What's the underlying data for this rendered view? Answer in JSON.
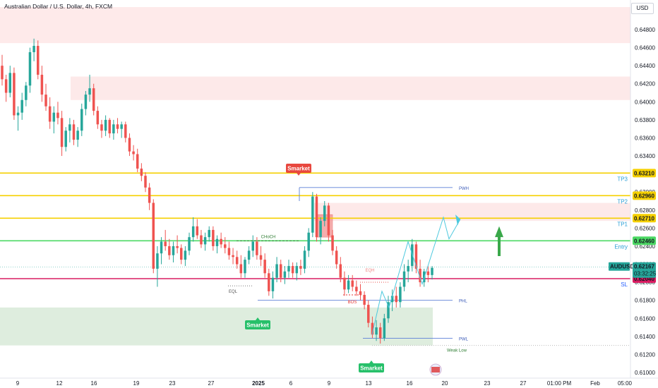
{
  "header": {
    "title": "Australian Dollar / U.S. Dollar, 4h, FXCM",
    "currency_button": "USD"
  },
  "chart_data": {
    "type": "candlestick",
    "symbol": "AUDUSD",
    "timeframe": "4h",
    "y_axis": {
      "ylim": [
        0.61,
        0.67
      ],
      "ticks": [
        "0.64800",
        "0.64600",
        "0.64400",
        "0.64200",
        "0.64000",
        "0.63800",
        "0.63600",
        "0.63400",
        "0.63200",
        "0.63000",
        "0.62800",
        "0.62600",
        "0.62400",
        "0.62200",
        "0.62000",
        "0.61800",
        "0.61600",
        "0.61400",
        "0.61200",
        "0.61000"
      ]
    },
    "x_axis": {
      "ticks": [
        "9",
        "12",
        "16",
        "19",
        "23",
        "27",
        "2025",
        "6",
        "9",
        "13",
        "16",
        "20",
        "23",
        "27",
        "01:00 PM",
        "Feb",
        "05:00"
      ]
    },
    "levels": [
      {
        "name": "TP3",
        "value": 0.6321,
        "label": "0.63210",
        "color": "#f5d000"
      },
      {
        "name": "TP2",
        "value": 0.6296,
        "label": "0.62960",
        "color": "#f5d000"
      },
      {
        "name": "TP1",
        "value": 0.6271,
        "label": "0.62710",
        "color": "#f5d000"
      },
      {
        "name": "Entry",
        "value": 0.6246,
        "label": "0.62460",
        "color": "#4cd964"
      },
      {
        "name": "SL",
        "value": 0.6204,
        "label": "0.62040",
        "color": "#d81b60"
      }
    ],
    "current_price": {
      "value": 0.62167,
      "label": "0.62167",
      "countdown": "03:32:25",
      "symbol": "AUDUSD"
    },
    "zones": [
      {
        "kind": "supply",
        "from": 0.6465,
        "to": 0.651
      },
      {
        "kind": "supply",
        "from": 0.6402,
        "to": 0.6428
      },
      {
        "kind": "supply",
        "from": 0.6268,
        "to": 0.6288
      },
      {
        "kind": "demand",
        "from": 0.613,
        "to": 0.6172
      }
    ],
    "annotations": [
      "Smarket",
      "Smarket",
      "Smarket",
      "CHoCH",
      "BOS",
      "PWH",
      "PWL",
      "PHL",
      "EQL",
      "EQH",
      "Weak Low"
    ],
    "ohlc": [
      [
        0.644,
        0.6452,
        0.6418,
        0.6425
      ],
      [
        0.6425,
        0.643,
        0.64,
        0.641
      ],
      [
        0.641,
        0.644,
        0.6405,
        0.6432
      ],
      [
        0.6432,
        0.6438,
        0.638,
        0.6385
      ],
      [
        0.6385,
        0.6395,
        0.6368,
        0.6388
      ],
      [
        0.6388,
        0.641,
        0.638,
        0.6402
      ],
      [
        0.6402,
        0.6422,
        0.6395,
        0.6418
      ],
      [
        0.6418,
        0.646,
        0.641,
        0.6455
      ],
      [
        0.6455,
        0.647,
        0.6445,
        0.6462
      ],
      [
        0.6462,
        0.6468,
        0.6425,
        0.643
      ],
      [
        0.643,
        0.644,
        0.64,
        0.6408
      ],
      [
        0.6408,
        0.642,
        0.639,
        0.6395
      ],
      [
        0.6395,
        0.6405,
        0.637,
        0.6378
      ],
      [
        0.6378,
        0.6395,
        0.6365,
        0.6388
      ],
      [
        0.6388,
        0.64,
        0.6375,
        0.6382
      ],
      [
        0.6382,
        0.639,
        0.634,
        0.635
      ],
      [
        0.635,
        0.6372,
        0.6345,
        0.6368
      ],
      [
        0.6368,
        0.6382,
        0.6355,
        0.6375
      ],
      [
        0.6375,
        0.638,
        0.6352,
        0.6358
      ],
      [
        0.6358,
        0.6372,
        0.635,
        0.6368
      ],
      [
        0.6368,
        0.6398,
        0.6362,
        0.6392
      ],
      [
        0.6392,
        0.6412,
        0.6385,
        0.6408
      ],
      [
        0.6408,
        0.643,
        0.64,
        0.6415
      ],
      [
        0.6415,
        0.642,
        0.6385,
        0.639
      ],
      [
        0.639,
        0.6395,
        0.637,
        0.6375
      ],
      [
        0.6375,
        0.638,
        0.636,
        0.6368
      ],
      [
        0.6368,
        0.6385,
        0.6362,
        0.638
      ],
      [
        0.638,
        0.6382,
        0.636,
        0.6365
      ],
      [
        0.6365,
        0.638,
        0.6358,
        0.6375
      ],
      [
        0.6375,
        0.6382,
        0.6365,
        0.637
      ],
      [
        0.637,
        0.6378,
        0.636,
        0.6375
      ],
      [
        0.6375,
        0.6378,
        0.6355,
        0.636
      ],
      [
        0.636,
        0.6365,
        0.634,
        0.6345
      ],
      [
        0.6345,
        0.6352,
        0.6335,
        0.6342
      ],
      [
        0.6342,
        0.6348,
        0.6322,
        0.6326
      ],
      [
        0.6326,
        0.6332,
        0.6312,
        0.6318
      ],
      [
        0.6318,
        0.6322,
        0.63,
        0.6305
      ],
      [
        0.6305,
        0.631,
        0.628,
        0.6288
      ],
      [
        0.6288,
        0.6292,
        0.621,
        0.6215
      ],
      [
        0.6215,
        0.624,
        0.6195,
        0.6232
      ],
      [
        0.6232,
        0.625,
        0.622,
        0.6245
      ],
      [
        0.6245,
        0.6258,
        0.6235,
        0.624
      ],
      [
        0.624,
        0.6248,
        0.6225,
        0.623
      ],
      [
        0.623,
        0.6245,
        0.6222,
        0.624
      ],
      [
        0.624,
        0.6252,
        0.6232,
        0.6238
      ],
      [
        0.6238,
        0.6242,
        0.622,
        0.6225
      ],
      [
        0.6225,
        0.624,
        0.6218,
        0.6235
      ],
      [
        0.6235,
        0.6255,
        0.623,
        0.625
      ],
      [
        0.625,
        0.6272,
        0.6245,
        0.6262
      ],
      [
        0.6262,
        0.627,
        0.6248,
        0.6252
      ],
      [
        0.6252,
        0.6258,
        0.6238,
        0.6242
      ],
      [
        0.6242,
        0.6255,
        0.6235,
        0.625
      ],
      [
        0.625,
        0.6262,
        0.6245,
        0.6258
      ],
      [
        0.6258,
        0.6262,
        0.6235,
        0.624
      ],
      [
        0.624,
        0.6252,
        0.6232,
        0.6248
      ],
      [
        0.6248,
        0.6255,
        0.6238,
        0.6242
      ],
      [
        0.6242,
        0.625,
        0.6232,
        0.6238
      ],
      [
        0.6238,
        0.6245,
        0.6225,
        0.623
      ],
      [
        0.623,
        0.6238,
        0.622,
        0.6228
      ],
      [
        0.6228,
        0.6235,
        0.6215,
        0.622
      ],
      [
        0.622,
        0.623,
        0.6205,
        0.621
      ],
      [
        0.621,
        0.6228,
        0.6205,
        0.6225
      ],
      [
        0.6225,
        0.624,
        0.622,
        0.6235
      ],
      [
        0.6235,
        0.6252,
        0.6228,
        0.6245
      ],
      [
        0.6245,
        0.625,
        0.6225,
        0.623
      ],
      [
        0.623,
        0.624,
        0.6218,
        0.6225
      ],
      [
        0.6225,
        0.6232,
        0.6205,
        0.621
      ],
      [
        0.621,
        0.6215,
        0.6185,
        0.619
      ],
      [
        0.619,
        0.6212,
        0.6182,
        0.6205
      ],
      [
        0.6205,
        0.6228,
        0.62,
        0.622
      ],
      [
        0.622,
        0.6225,
        0.62,
        0.6205
      ],
      [
        0.6205,
        0.6218,
        0.6198,
        0.6212
      ],
      [
        0.6212,
        0.6225,
        0.6205,
        0.6218
      ],
      [
        0.6218,
        0.6222,
        0.6205,
        0.621
      ],
      [
        0.621,
        0.6222,
        0.6202,
        0.6218
      ],
      [
        0.6218,
        0.6225,
        0.6208,
        0.6215
      ],
      [
        0.6215,
        0.624,
        0.621,
        0.6235
      ],
      [
        0.6235,
        0.626,
        0.6228,
        0.6255
      ],
      [
        0.6255,
        0.63,
        0.625,
        0.6295
      ],
      [
        0.6295,
        0.6298,
        0.6245,
        0.625
      ],
      [
        0.625,
        0.6272,
        0.6242,
        0.6268
      ],
      [
        0.6268,
        0.629,
        0.6262,
        0.6285
      ],
      [
        0.6285,
        0.6288,
        0.6245,
        0.6252
      ],
      [
        0.6252,
        0.6258,
        0.623,
        0.6235
      ],
      [
        0.6235,
        0.624,
        0.6215,
        0.622
      ],
      [
        0.622,
        0.6228,
        0.62,
        0.6205
      ],
      [
        0.6205,
        0.6212,
        0.6185,
        0.6192
      ],
      [
        0.6192,
        0.6208,
        0.6188,
        0.6202
      ],
      [
        0.6202,
        0.6208,
        0.619,
        0.6195
      ],
      [
        0.6195,
        0.6202,
        0.6185,
        0.619
      ],
      [
        0.619,
        0.6198,
        0.618,
        0.6186
      ],
      [
        0.6186,
        0.619,
        0.617,
        0.6175
      ],
      [
        0.6175,
        0.618,
        0.615,
        0.6155
      ],
      [
        0.6155,
        0.6162,
        0.6138,
        0.6142
      ],
      [
        0.6142,
        0.6158,
        0.6135,
        0.615
      ],
      [
        0.615,
        0.6155,
        0.6132,
        0.6138
      ],
      [
        0.6138,
        0.6165,
        0.6135,
        0.616
      ],
      [
        0.616,
        0.6185,
        0.6155,
        0.6178
      ],
      [
        0.6178,
        0.6192,
        0.6168,
        0.6185
      ],
      [
        0.6185,
        0.6195,
        0.6172,
        0.6178
      ],
      [
        0.6178,
        0.62,
        0.6172,
        0.6195
      ],
      [
        0.6195,
        0.622,
        0.619,
        0.6212
      ],
      [
        0.6212,
        0.6225,
        0.62,
        0.6218
      ],
      [
        0.6218,
        0.6248,
        0.6212,
        0.6242
      ],
      [
        0.6242,
        0.6245,
        0.621,
        0.6215
      ],
      [
        0.6215,
        0.6225,
        0.6195,
        0.62
      ],
      [
        0.62,
        0.6215,
        0.6195,
        0.6212
      ],
      [
        0.6212,
        0.6218,
        0.62,
        0.6208
      ],
      [
        0.6208,
        0.6218,
        0.6203,
        0.6216
      ]
    ]
  },
  "tags": {
    "smarket_top": "Smarket",
    "smarket_left": "Smarket",
    "smarket_bottom": "Smarket"
  },
  "labels": {
    "choch": "CHoCH",
    "bos": "BOS",
    "pwh": "PWH",
    "pwl": "PWL",
    "phl": "PHL",
    "eql": "EQL",
    "eqh": "EQH",
    "weak_low": "Weak Low"
  },
  "colors": {
    "bull": "#26a69a",
    "bear": "#ef5350",
    "supply_zone": "#fde3e3",
    "demand_zone": "#d6e9d6",
    "projection": "#4dc9de"
  }
}
